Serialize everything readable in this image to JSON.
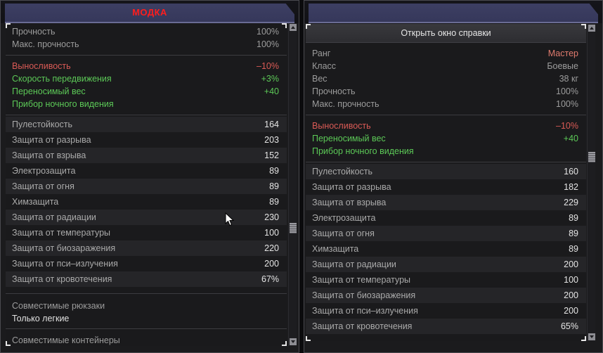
{
  "left": {
    "title": "МОДКА",
    "base_stats": [
      {
        "label": "Прочность",
        "value": "100%"
      },
      {
        "label": "Макс. прочность",
        "value": "100%"
      }
    ],
    "effects": [
      {
        "label": "Выносливость",
        "value": "–10%",
        "color": "red"
      },
      {
        "label": "Скорость передвижения",
        "value": "+3%",
        "color": "green"
      },
      {
        "label": "Переносимый вес",
        "value": "+40",
        "color": "green"
      },
      {
        "label": "Прибор ночного видения",
        "value": "",
        "color": "green"
      }
    ],
    "protections": [
      {
        "label": "Пулестойкость",
        "value": "164"
      },
      {
        "label": "Защита от разрыва",
        "value": "203"
      },
      {
        "label": "Защита от взрыва",
        "value": "152"
      },
      {
        "label": "Электрозащита",
        "value": "89"
      },
      {
        "label": "Защита от огня",
        "value": "89"
      },
      {
        "label": "Химзащита",
        "value": "89"
      },
      {
        "label": "Защита от радиации",
        "value": "230"
      },
      {
        "label": "Защита от температуры",
        "value": "100"
      },
      {
        "label": "Защита от биозаражения",
        "value": "220"
      },
      {
        "label": "Защита от пси–излучения",
        "value": "200"
      },
      {
        "label": "Защита от кровотечения",
        "value": "67%"
      }
    ],
    "compat_backpacks_label": "Совместимые рюкзаки",
    "compat_backpacks_value": "Только легкие",
    "compat_containers_label": "Совместимые контейнеры"
  },
  "right": {
    "help_button": "Открыть окно справки",
    "base_stats": [
      {
        "label": "Ранг",
        "value": "Мастер",
        "value_color": "#e07b6e"
      },
      {
        "label": "Класс",
        "value": "Боевые"
      },
      {
        "label": "Вес",
        "value": "38 кг"
      },
      {
        "label": "Прочность",
        "value": "100%"
      },
      {
        "label": "Макс. прочность",
        "value": "100%"
      }
    ],
    "effects": [
      {
        "label": "Выносливость",
        "value": "–10%",
        "color": "red"
      },
      {
        "label": "Переносимый вес",
        "value": "+40",
        "color": "green"
      },
      {
        "label": "Прибор ночного видения",
        "value": "",
        "color": "green"
      }
    ],
    "protections": [
      {
        "label": "Пулестойкость",
        "value": "160"
      },
      {
        "label": "Защита от разрыва",
        "value": "182"
      },
      {
        "label": "Защита от взрыва",
        "value": "229"
      },
      {
        "label": "Электрозащита",
        "value": "89"
      },
      {
        "label": "Защита от огня",
        "value": "89"
      },
      {
        "label": "Химзащита",
        "value": "89"
      },
      {
        "label": "Защита от радиации",
        "value": "200"
      },
      {
        "label": "Защита от температуры",
        "value": "100"
      },
      {
        "label": "Защита от биозаражения",
        "value": "200"
      },
      {
        "label": "Защита от пси–излучения",
        "value": "200"
      },
      {
        "label": "Защита от кровотечения",
        "value": "65%"
      }
    ]
  },
  "colors": {
    "title_red": "#ff1d1d",
    "negative": "#d95a55",
    "positive": "#5cc957",
    "panel_bar": "#3d3f63"
  },
  "icons": [
    "scroll-up-arrow-icon",
    "scroll-down-arrow-icon",
    "mouse-cursor-icon"
  ]
}
